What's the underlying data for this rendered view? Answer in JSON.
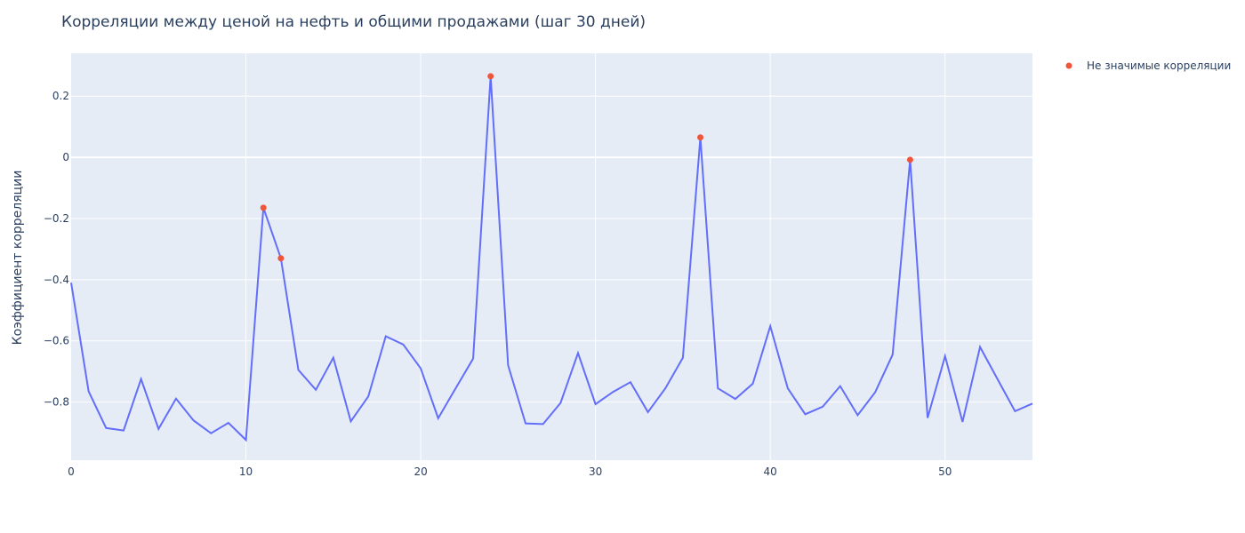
{
  "chart_data": {
    "type": "line",
    "title": "Корреляции между ценой на нефть и общими продажами (шаг 30 дней)",
    "xlabel": "",
    "ylabel": "Коэффициент корреляции",
    "xlim": [
      0,
      55
    ],
    "ylim": [
      -0.99,
      0.34
    ],
    "x_ticks": [
      0,
      10,
      20,
      30,
      40,
      50
    ],
    "y_ticks": [
      -0.8,
      -0.6,
      -0.4,
      -0.2,
      0,
      0.2
    ],
    "y_tick_labels": [
      "−0.8",
      "−0.6",
      "−0.4",
      "−0.2",
      "0",
      "0.2"
    ],
    "grid": true,
    "legend_position": "top-right",
    "colors": {
      "line": "#636efa",
      "markers": "#ef553b",
      "plot_bg": "#e5ecf6",
      "grid": "#ffffff"
    },
    "series": [
      {
        "type": "line",
        "x": [
          0,
          1,
          2,
          3,
          4,
          5,
          6,
          7,
          8,
          9,
          10,
          11,
          12,
          13,
          14,
          15,
          16,
          17,
          18,
          19,
          20,
          21,
          22,
          23,
          24,
          25,
          26,
          27,
          28,
          29,
          30,
          31,
          32,
          33,
          34,
          35,
          36,
          37,
          38,
          39,
          40,
          41,
          42,
          43,
          44,
          45,
          46,
          47,
          48,
          49,
          50,
          51,
          52,
          53,
          54,
          55
        ],
        "y": [
          -0.41,
          -0.765,
          -0.885,
          -0.893,
          -0.725,
          -0.888,
          -0.789,
          -0.86,
          -0.902,
          -0.868,
          -0.924,
          -0.165,
          -0.33,
          -0.695,
          -0.76,
          -0.655,
          -0.863,
          -0.782,
          -0.585,
          -0.612,
          -0.69,
          -0.853,
          -0.755,
          -0.658,
          0.265,
          -0.68,
          -0.87,
          -0.872,
          -0.803,
          -0.64,
          -0.807,
          -0.767,
          -0.735,
          -0.833,
          -0.755,
          -0.655,
          0.065,
          -0.755,
          -0.79,
          -0.74,
          -0.552,
          -0.755,
          -0.84,
          -0.815,
          -0.748,
          -0.843,
          -0.768,
          -0.645,
          -0.008,
          -0.852,
          -0.65,
          -0.865,
          -0.62,
          -0.725,
          -0.83,
          -0.805
        ]
      },
      {
        "type": "scatter",
        "name": "Не значимые корреляции",
        "x": [
          11,
          12,
          24,
          36,
          48
        ],
        "y": [
          -0.165,
          -0.33,
          0.265,
          0.065,
          -0.008
        ]
      }
    ]
  }
}
